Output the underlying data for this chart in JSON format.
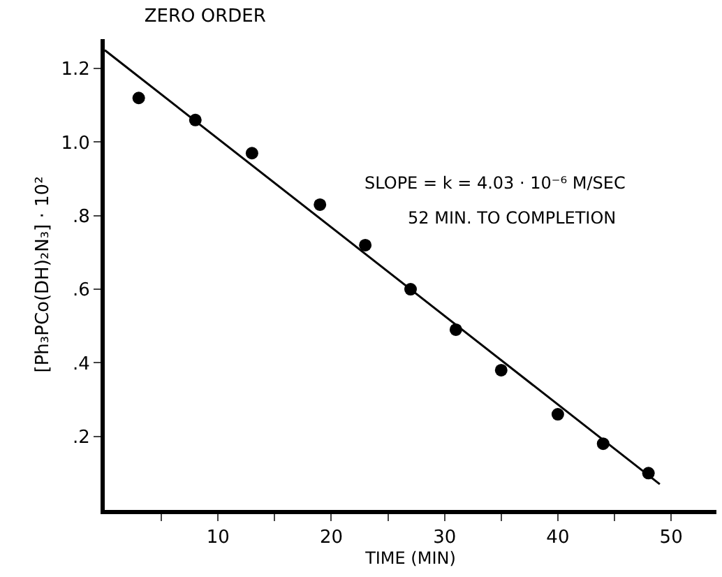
{
  "chart_data": {
    "type": "scatter",
    "title": "ZERO ORDER",
    "xlabel": "TIME (MIN)",
    "ylabel": "[Ph₃PCo(DH)₂N₃] · 10²",
    "annotations": [
      "SLOPE = k = 4.03 · 10⁻⁶ M/SEC",
      "52 MIN. TO COMPLETION"
    ],
    "series": [
      {
        "color": "#000000",
        "marker": "circle",
        "x": [
          3,
          8,
          13,
          19,
          23,
          27,
          31,
          35,
          40,
          44,
          48
        ],
        "values": [
          1.12,
          1.06,
          0.97,
          0.83,
          0.72,
          0.6,
          0.49,
          0.38,
          0.26,
          0.18,
          0.1
        ]
      },
      {
        "type": "line",
        "color": "#000000",
        "marker": "none",
        "line_style": "solid",
        "x": [
          0,
          49
        ],
        "values": [
          1.25,
          0.07
        ]
      }
    ],
    "xlim": [
      0,
      54
    ],
    "ylim": [
      0,
      1.28
    ],
    "xticks": [
      {
        "value": 5,
        "label": null
      },
      10,
      {
        "value": 15,
        "label": null
      },
      20,
      {
        "value": 25,
        "label": null
      },
      30,
      {
        "value": 35,
        "label": null
      },
      40,
      {
        "value": 45,
        "label": null
      },
      50
    ],
    "yticks": [
      {
        "value": 0.2,
        "label": ".2"
      },
      {
        "value": 0.4,
        "label": ".4"
      },
      {
        "value": 0.6,
        "label": ".6"
      },
      {
        "value": 0.8,
        "label": ".8"
      },
      {
        "value": 1.0,
        "label": "1.0"
      },
      {
        "value": 1.2,
        "label": "1.2"
      }
    ]
  }
}
